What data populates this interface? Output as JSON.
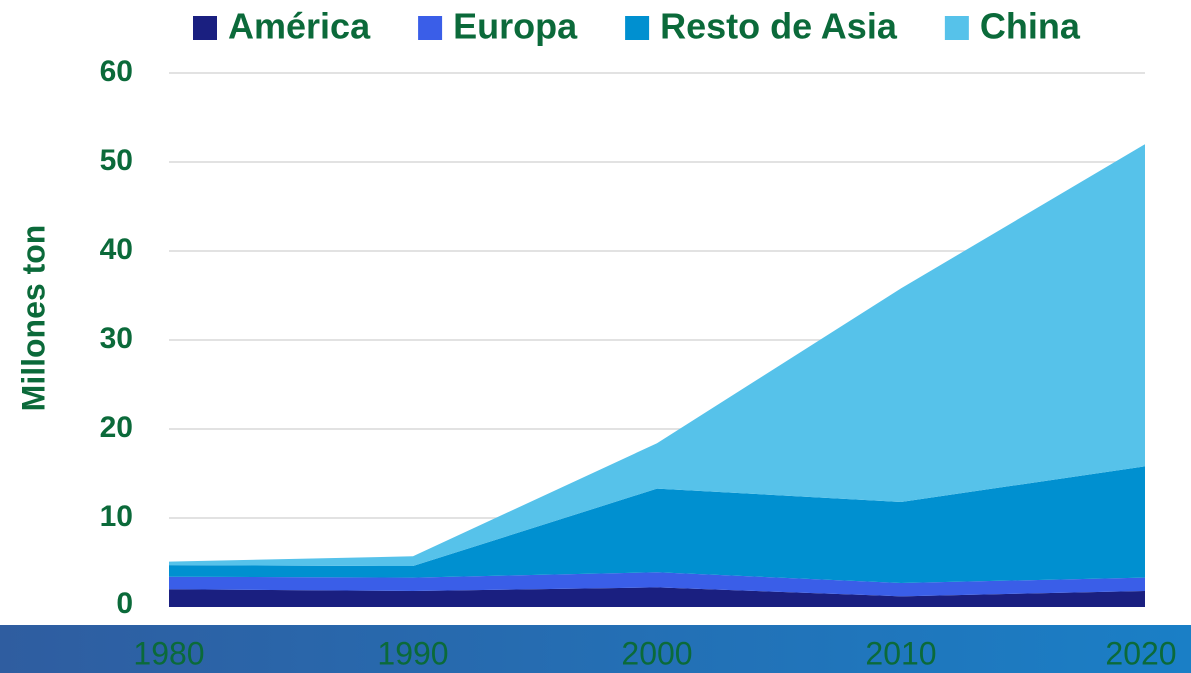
{
  "chart_data": {
    "type": "area",
    "stacked": true,
    "y_label": "Millones ton",
    "x": [
      1980,
      1990,
      2000,
      2010,
      2020
    ],
    "xlim": [
      1980,
      2020
    ],
    "xticks": [
      1980,
      1990,
      2000,
      2010,
      2020
    ],
    "ylim": [
      0,
      60
    ],
    "yticks": [
      0,
      10,
      20,
      30,
      40,
      50,
      60
    ],
    "grid": true,
    "legend": "top",
    "series": [
      {
        "name": "América",
        "color": "#1a1f80",
        "values": [
          2.0,
          1.8,
          2.2,
          1.2,
          1.8
        ]
      },
      {
        "name": "Europa",
        "color": "#3a5ee8",
        "values": [
          1.4,
          1.5,
          1.7,
          1.5,
          1.5
        ]
      },
      {
        "name": "Resto de Asia",
        "color": "#0090d0",
        "values": [
          1.3,
          1.3,
          9.4,
          9.1,
          12.5
        ]
      },
      {
        "name": "China",
        "color": "#56c2ea",
        "values": [
          0.4,
          1.1,
          5.1,
          24.0,
          36.2
        ]
      }
    ]
  }
}
